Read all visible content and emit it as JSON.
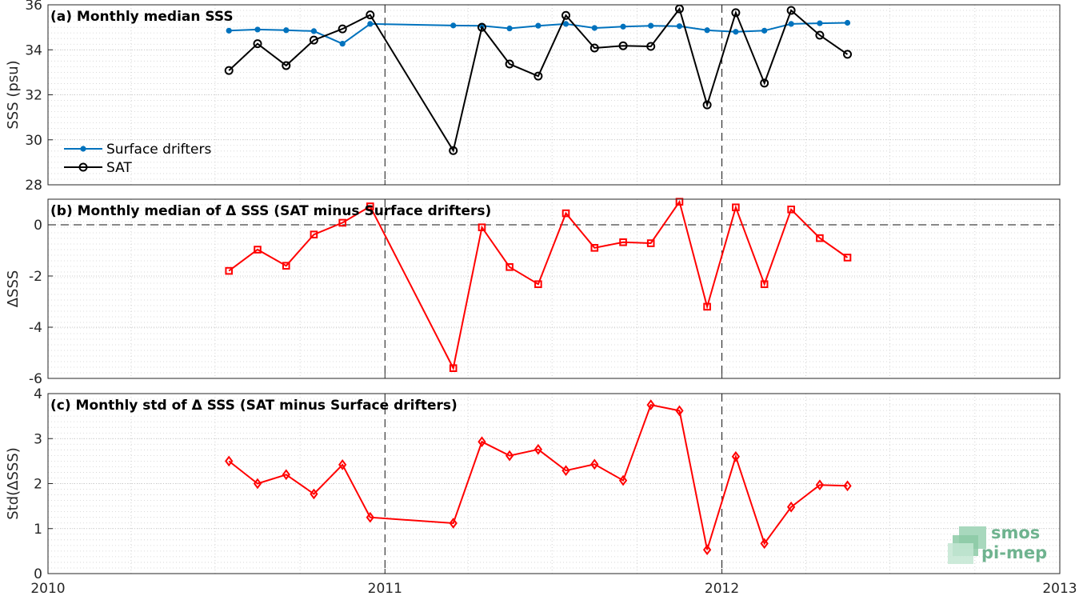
{
  "logo": {
    "line1": "smos",
    "line2": "pi-mep"
  },
  "chart_data": [
    {
      "type": "line",
      "title": "(a) Monthly median SSS",
      "xlabel": "",
      "ylabel": "SSS (psu)",
      "xlim": [
        "2010-01-01",
        "2013-01-01"
      ],
      "ylim": [
        28,
        36
      ],
      "xticks": [
        "2010",
        "2011",
        "2012",
        "2013"
      ],
      "yticks": [
        "28",
        "30",
        "32",
        "34",
        "36"
      ],
      "grid": true,
      "legend": "bottom-left",
      "x": [
        "2010-07",
        "2010-08",
        "2010-09",
        "2010-10",
        "2010-11",
        "2010-12",
        "2011-03",
        "2011-04",
        "2011-05",
        "2011-06",
        "2011-07",
        "2011-08",
        "2011-09",
        "2011-10",
        "2011-11",
        "2011-12",
        "2012-01",
        "2012-02",
        "2012-03",
        "2012-04",
        "2012-05"
      ],
      "series": [
        {
          "name": "Surface drifters",
          "color": "#0072bd",
          "marker": "dot",
          "values": [
            34.85,
            34.9,
            34.87,
            34.83,
            34.27,
            35.15,
            35.08,
            35.07,
            34.95,
            35.07,
            35.15,
            34.97,
            35.03,
            35.07,
            35.05,
            34.87,
            34.8,
            34.85,
            35.15,
            35.18,
            35.2
          ]
        },
        {
          "name": "SAT",
          "color": "#000000",
          "marker": "circle",
          "values": [
            33.08,
            34.27,
            33.3,
            34.43,
            34.93,
            35.55,
            29.52,
            35.0,
            33.37,
            32.83,
            35.53,
            34.08,
            34.18,
            34.15,
            35.82,
            31.55,
            35.65,
            32.52,
            35.75,
            34.65,
            33.8
          ]
        }
      ]
    },
    {
      "type": "line",
      "title": "(b) Monthly median of Δ SSS (SAT minus Surface drifters)",
      "xlabel": "",
      "ylabel": "ΔSSS",
      "xlim": [
        "2010-01-01",
        "2013-01-01"
      ],
      "ylim": [
        -6,
        1
      ],
      "xticks": [
        "2010",
        "2011",
        "2012",
        "2013"
      ],
      "yticks": [
        "-6",
        "-4",
        "-2",
        "0"
      ],
      "grid": true,
      "reference_line": 0,
      "x": [
        "2010-07",
        "2010-08",
        "2010-09",
        "2010-10",
        "2010-11",
        "2010-12",
        "2011-03",
        "2011-04",
        "2011-05",
        "2011-06",
        "2011-07",
        "2011-08",
        "2011-09",
        "2011-10",
        "2011-11",
        "2011-12",
        "2012-01",
        "2012-02",
        "2012-03",
        "2012-04",
        "2012-05"
      ],
      "series": [
        {
          "color": "#ff0000",
          "marker": "square",
          "values": [
            -1.8,
            -0.97,
            -1.6,
            -0.38,
            0.08,
            0.72,
            -5.6,
            -0.1,
            -1.65,
            -2.32,
            0.45,
            -0.9,
            -0.68,
            -0.72,
            0.9,
            -3.2,
            0.68,
            -2.32,
            0.6,
            -0.52,
            -1.28
          ]
        }
      ]
    },
    {
      "type": "line",
      "title": "(c) Monthly std of Δ SSS (SAT minus Surface drifters)",
      "xlabel": "",
      "ylabel": "Std(ΔSSS)",
      "xlim": [
        "2010-01-01",
        "2013-01-01"
      ],
      "ylim": [
        0,
        4
      ],
      "xticks": [
        "2010",
        "2011",
        "2012",
        "2013"
      ],
      "yticks": [
        "0",
        "1",
        "2",
        "3",
        "4"
      ],
      "grid": true,
      "x": [
        "2010-07",
        "2010-08",
        "2010-09",
        "2010-10",
        "2010-11",
        "2010-12",
        "2011-03",
        "2011-04",
        "2011-05",
        "2011-06",
        "2011-07",
        "2011-08",
        "2011-09",
        "2011-10",
        "2011-11",
        "2011-12",
        "2012-01",
        "2012-02",
        "2012-03",
        "2012-04",
        "2012-05"
      ],
      "series": [
        {
          "color": "#ff0000",
          "marker": "diamond",
          "values": [
            2.5,
            2.0,
            2.2,
            1.77,
            2.42,
            1.25,
            1.12,
            2.93,
            2.62,
            2.76,
            2.29,
            2.43,
            2.07,
            3.75,
            3.62,
            0.53,
            2.6,
            0.67,
            1.48,
            1.97,
            1.95
          ]
        }
      ]
    }
  ]
}
